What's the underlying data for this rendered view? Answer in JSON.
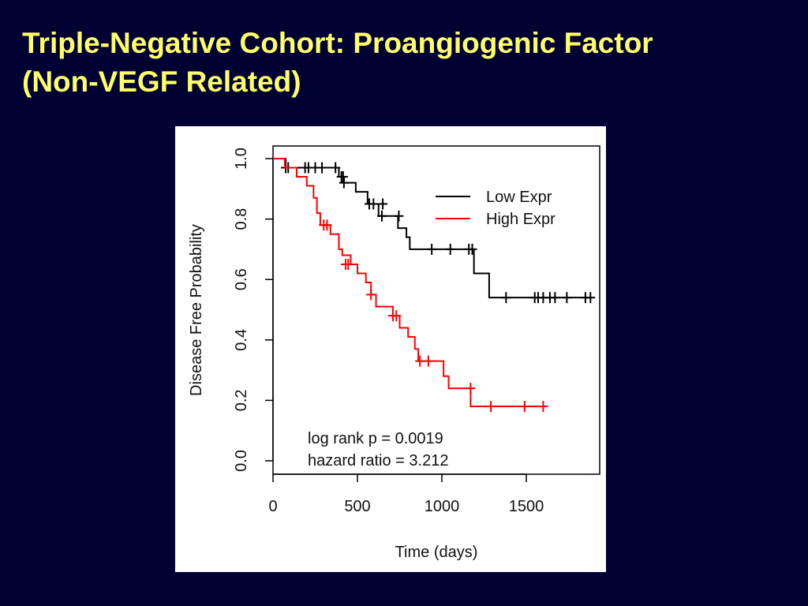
{
  "slide": {
    "title_line1": "Triple-Negative Cohort: Proangiogenic Factor",
    "title_line2": "(Non-VEGF Related)",
    "title_color": "#FFFF66",
    "background_color": "#000033"
  },
  "chart_data": {
    "type": "line",
    "subtype": "kaplan-meier step curve",
    "title": "",
    "xlabel": "Time (days)",
    "ylabel": "Disease Free Probability",
    "xlim": [
      0,
      1900
    ],
    "ylim": [
      0,
      1
    ],
    "x_ticks": [
      0,
      500,
      1000,
      1500
    ],
    "x_tick_labels": [
      "0",
      "500",
      "1000",
      "1500"
    ],
    "y_ticks": [
      0,
      0.2,
      0.4,
      0.6,
      0.8,
      1.0
    ],
    "y_tick_labels": [
      "0.0",
      "0.2",
      "0.4",
      "0.6",
      "0.8",
      "1.0"
    ],
    "grid": false,
    "legend_position": "top-right",
    "series": [
      {
        "name": "Low Expr",
        "color": "#000000",
        "steps": [
          [
            0,
            1.0
          ],
          [
            75,
            0.97
          ],
          [
            390,
            0.94
          ],
          [
            420,
            0.92
          ],
          [
            490,
            0.89
          ],
          [
            560,
            0.85
          ],
          [
            625,
            0.81
          ],
          [
            740,
            0.77
          ],
          [
            790,
            0.74
          ],
          [
            810,
            0.7
          ],
          [
            1190,
            0.62
          ],
          [
            1280,
            0.54
          ],
          [
            1890,
            0.54
          ]
        ],
        "censored": [
          [
            75,
            0.97
          ],
          [
            90,
            0.97
          ],
          [
            190,
            0.97
          ],
          [
            210,
            0.97
          ],
          [
            250,
            0.97
          ],
          [
            290,
            0.97
          ],
          [
            370,
            0.97
          ],
          [
            405,
            0.94
          ],
          [
            415,
            0.94
          ],
          [
            420,
            0.92
          ],
          [
            570,
            0.85
          ],
          [
            595,
            0.85
          ],
          [
            650,
            0.85
          ],
          [
            645,
            0.81
          ],
          [
            745,
            0.81
          ],
          [
            940,
            0.7
          ],
          [
            1050,
            0.7
          ],
          [
            1160,
            0.7
          ],
          [
            1180,
            0.7
          ],
          [
            1380,
            0.54
          ],
          [
            1550,
            0.54
          ],
          [
            1570,
            0.54
          ],
          [
            1600,
            0.54
          ],
          [
            1640,
            0.54
          ],
          [
            1670,
            0.54
          ],
          [
            1740,
            0.54
          ],
          [
            1850,
            0.54
          ],
          [
            1880,
            0.54
          ]
        ]
      },
      {
        "name": "High Expr",
        "color": "#FF0000",
        "steps": [
          [
            0,
            1.0
          ],
          [
            70,
            0.97
          ],
          [
            140,
            0.94
          ],
          [
            200,
            0.91
          ],
          [
            240,
            0.87
          ],
          [
            260,
            0.82
          ],
          [
            280,
            0.78
          ],
          [
            340,
            0.75
          ],
          [
            390,
            0.7
          ],
          [
            410,
            0.68
          ],
          [
            460,
            0.65
          ],
          [
            500,
            0.62
          ],
          [
            550,
            0.59
          ],
          [
            580,
            0.55
          ],
          [
            610,
            0.51
          ],
          [
            710,
            0.48
          ],
          [
            750,
            0.44
          ],
          [
            800,
            0.41
          ],
          [
            840,
            0.37
          ],
          [
            860,
            0.33
          ],
          [
            1010,
            0.28
          ],
          [
            1040,
            0.24
          ],
          [
            1170,
            0.18
          ],
          [
            1620,
            0.18
          ]
        ],
        "censored": [
          [
            300,
            0.78
          ],
          [
            320,
            0.78
          ],
          [
            430,
            0.65
          ],
          [
            445,
            0.65
          ],
          [
            580,
            0.55
          ],
          [
            710,
            0.48
          ],
          [
            730,
            0.48
          ],
          [
            870,
            0.33
          ],
          [
            920,
            0.33
          ],
          [
            1170,
            0.24
          ],
          [
            1290,
            0.18
          ],
          [
            1490,
            0.18
          ],
          [
            1600,
            0.18
          ]
        ]
      }
    ],
    "annotations": [
      "log rank p = 0.0019",
      "hazard ratio = 3.212"
    ]
  }
}
